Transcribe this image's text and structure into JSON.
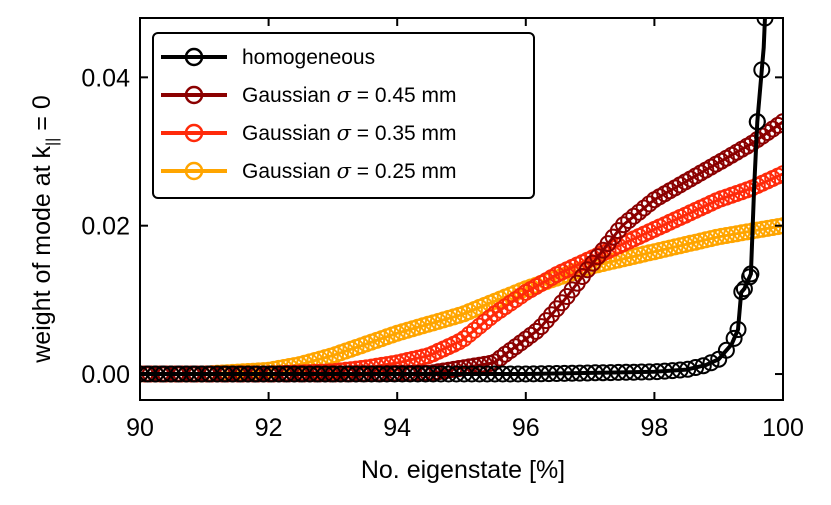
{
  "chart_data": {
    "type": "line",
    "title": "",
    "xlabel": "No. eigenstate [%]",
    "ylabel": "weight of mode at k",
    "ylabel_sub": "||",
    "ylabel_tail": " = 0",
    "xlim": [
      90,
      100
    ],
    "ylim": [
      -0.0035,
      0.048
    ],
    "x_ticks": [
      90,
      92,
      94,
      96,
      98,
      100
    ],
    "x_tick_labels": [
      "90",
      "92",
      "94",
      "96",
      "98",
      "100"
    ],
    "y_ticks": [
      0.0,
      0.02,
      0.04
    ],
    "y_tick_labels": [
      "0.00",
      "0.02",
      "0.04"
    ],
    "grid": false,
    "legend_position": "top-left",
    "legend_sigma_symbol": "σ",
    "markers": "open-circle",
    "series": [
      {
        "name": "homogeneous",
        "label_prefix": "homogeneous",
        "label_suffix": "",
        "color": "#000000",
        "x": [
          90,
          92,
          94,
          96,
          98,
          98.5,
          98.8,
          99.0,
          99.1,
          99.2,
          99.3,
          99.35,
          99.4,
          99.5,
          99.55,
          99.6,
          99.65,
          99.7,
          99.73
        ],
        "y": [
          0.0,
          0.0,
          0.0,
          0.0,
          0.0003,
          0.0006,
          0.0012,
          0.002,
          0.003,
          0.004,
          0.006,
          0.011,
          0.0115,
          0.0135,
          0.025,
          0.034,
          0.039,
          0.044,
          0.05
        ]
      },
      {
        "name": "Gaussian σ = 0.45 mm",
        "label_prefix": "Gaussian ",
        "label_suffix": " = 0.45 mm",
        "color": "#8b0000",
        "x": [
          90,
          93,
          94.5,
          95.5,
          96.2,
          96.6,
          97.0,
          97.5,
          98.0,
          98.5,
          99.0,
          99.5,
          100
        ],
        "y": [
          0.0,
          0.0,
          0.0001,
          0.0015,
          0.006,
          0.01,
          0.0145,
          0.02,
          0.0235,
          0.026,
          0.0285,
          0.031,
          0.034
        ]
      },
      {
        "name": "Gaussian σ = 0.35 mm",
        "label_prefix": "Gaussian ",
        "label_suffix": " = 0.35 mm",
        "color": "#ff2a0a",
        "x": [
          90,
          92,
          93,
          93.5,
          94,
          94.5,
          95,
          95.5,
          96,
          96.5,
          97,
          97.5,
          98,
          98.5,
          99,
          99.5,
          100
        ],
        "y": [
          0.0,
          0.0,
          0.0003,
          0.0008,
          0.0015,
          0.0025,
          0.0045,
          0.008,
          0.011,
          0.0135,
          0.0155,
          0.0175,
          0.0195,
          0.0215,
          0.0235,
          0.025,
          0.027
        ]
      },
      {
        "name": "Gaussian σ = 0.25 mm",
        "label_prefix": "Gaussian ",
        "label_suffix": " = 0.25 mm",
        "color": "#ffa500",
        "x": [
          90,
          91,
          92,
          92.5,
          93,
          93.5,
          94,
          95,
          96,
          97,
          98,
          99,
          100
        ],
        "y": [
          0.0,
          0.0,
          0.0005,
          0.0013,
          0.0025,
          0.004,
          0.0055,
          0.008,
          0.0115,
          0.0145,
          0.0165,
          0.0185,
          0.02
        ]
      }
    ]
  }
}
